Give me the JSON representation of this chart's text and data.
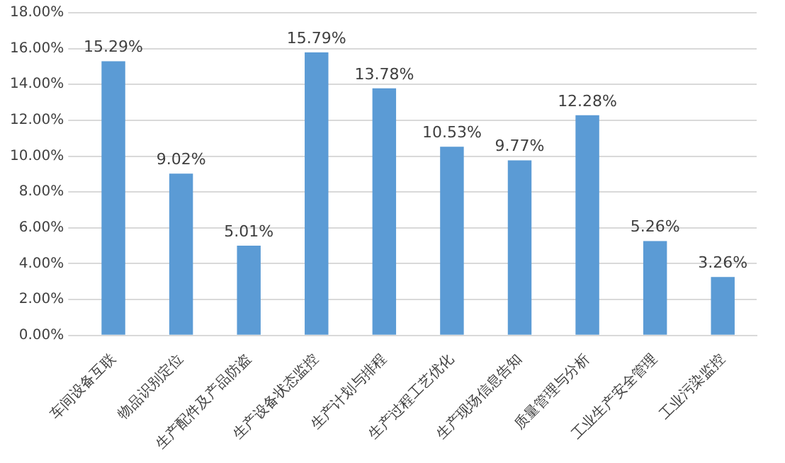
{
  "chart_data": {
    "type": "bar",
    "categories": [
      "车间设备互联",
      "物品识别定位",
      "生产配件及产品防盗",
      "生产设备状态监控",
      "生产计划与排程",
      "生产过程工艺优化",
      "生产现场信息告知",
      "质量管理与分析",
      "工业生产安全管理",
      "工业污染监控"
    ],
    "values": [
      15.29,
      9.02,
      5.01,
      15.79,
      13.78,
      10.53,
      9.77,
      12.28,
      5.26,
      3.26
    ],
    "value_labels": [
      "15.29%",
      "9.02%",
      "5.01%",
      "15.79%",
      "13.78%",
      "10.53%",
      "9.77%",
      "12.28%",
      "5.26%",
      "3.26%"
    ],
    "color": "#5b9bd5",
    "ylim": [
      0,
      18
    ],
    "yticks": [
      {
        "value": 0,
        "label": "0.00%"
      },
      {
        "value": 2,
        "label": "2.00%"
      },
      {
        "value": 4,
        "label": "4.00%"
      },
      {
        "value": 6,
        "label": "6.00%"
      },
      {
        "value": 8,
        "label": "8.00%"
      },
      {
        "value": 10,
        "label": "10.00%"
      },
      {
        "value": 12,
        "label": "12.00%"
      },
      {
        "value": 14,
        "label": "14.00%"
      },
      {
        "value": 16,
        "label": "16.00%"
      },
      {
        "value": 18,
        "label": "18.00%"
      }
    ],
    "grid": "y"
  }
}
